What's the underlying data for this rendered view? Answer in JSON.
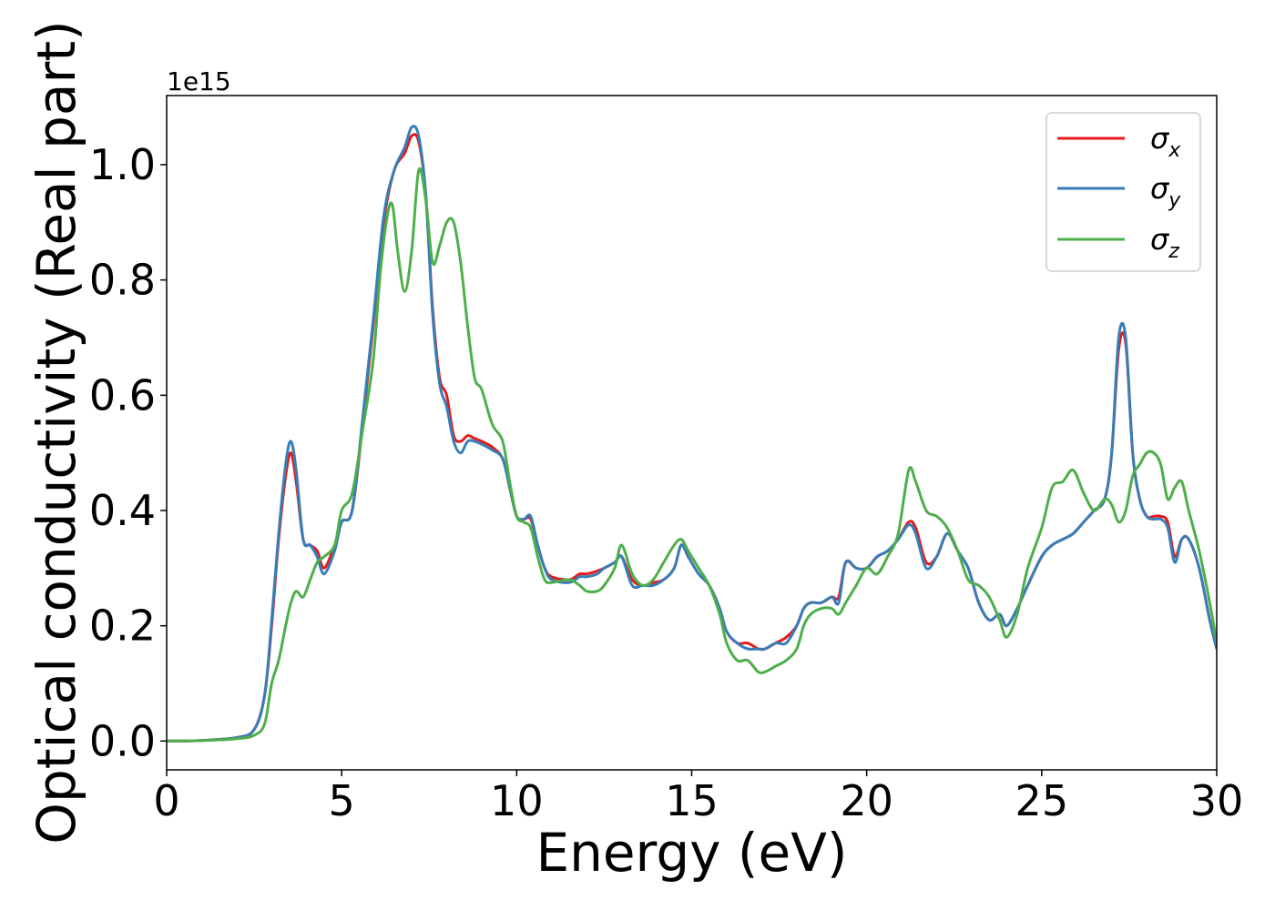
{
  "chart_data": {
    "type": "line",
    "title": "",
    "xlabel": "Energy (eV)",
    "ylabel": "Optical conductivity (Real part)",
    "y_offset_text": "1e15",
    "xlim": [
      0,
      30
    ],
    "ylim": [
      -0.05,
      1.12
    ],
    "xticks": [
      0,
      5,
      10,
      15,
      20,
      25,
      30
    ],
    "xtick_labels": [
      "0",
      "5",
      "10",
      "15",
      "20",
      "25",
      "30"
    ],
    "yticks": [
      0.0,
      0.2,
      0.4,
      0.6,
      0.8,
      1.0
    ],
    "ytick_labels": [
      "0.0",
      "0.2",
      "0.4",
      "0.6",
      "0.8",
      "1.0"
    ],
    "grid": false,
    "legend_position": "top-right",
    "series": [
      {
        "name": "σx",
        "legend_base": "σ",
        "legend_sub": "x",
        "color": "#e41a1c",
        "x": [
          0,
          1,
          2,
          2.5,
          2.8,
          3.0,
          3.2,
          3.4,
          3.55,
          3.7,
          3.9,
          4.1,
          4.3,
          4.5,
          4.8,
          5.0,
          5.3,
          5.6,
          5.9,
          6.2,
          6.5,
          6.8,
          7.0,
          7.2,
          7.4,
          7.6,
          7.8,
          8.0,
          8.2,
          8.4,
          8.6,
          8.8,
          9.0,
          9.3,
          9.6,
          9.8,
          10.0,
          10.2,
          10.4,
          10.6,
          10.8,
          11.0,
          11.5,
          11.8,
          12.0,
          12.3,
          12.5,
          12.8,
          13.0,
          13.3,
          13.6,
          13.9,
          14.2,
          14.5,
          14.7,
          14.9,
          15.2,
          15.5,
          15.8,
          16.0,
          16.3,
          16.6,
          16.9,
          17.1,
          17.4,
          17.7,
          18.0,
          18.2,
          18.4,
          18.7,
          19.0,
          19.2,
          19.4,
          19.7,
          20.0,
          20.3,
          20.6,
          20.9,
          21.2,
          21.4,
          21.7,
          22.0,
          22.3,
          22.6,
          22.9,
          23.2,
          23.5,
          23.8,
          24.0,
          24.3,
          24.6,
          25.0,
          25.3,
          25.6,
          25.9,
          26.2,
          26.5,
          26.8,
          27.0,
          27.2,
          27.4,
          27.6,
          27.8,
          28.0,
          28.2,
          28.4,
          28.6,
          28.8,
          29.0,
          29.2,
          29.5,
          29.8,
          30.0
        ],
        "y": [
          0.0,
          0.001,
          0.006,
          0.02,
          0.08,
          0.2,
          0.35,
          0.46,
          0.5,
          0.45,
          0.35,
          0.34,
          0.33,
          0.3,
          0.34,
          0.38,
          0.4,
          0.55,
          0.72,
          0.9,
          0.99,
          1.02,
          1.05,
          1.04,
          0.95,
          0.75,
          0.63,
          0.6,
          0.53,
          0.52,
          0.53,
          0.525,
          0.52,
          0.51,
          0.49,
          0.44,
          0.39,
          0.385,
          0.385,
          0.34,
          0.3,
          0.285,
          0.28,
          0.29,
          0.29,
          0.295,
          0.3,
          0.31,
          0.32,
          0.28,
          0.27,
          0.275,
          0.28,
          0.3,
          0.34,
          0.32,
          0.29,
          0.27,
          0.23,
          0.19,
          0.17,
          0.17,
          0.16,
          0.16,
          0.17,
          0.18,
          0.2,
          0.23,
          0.24,
          0.24,
          0.25,
          0.25,
          0.31,
          0.3,
          0.3,
          0.32,
          0.33,
          0.35,
          0.38,
          0.37,
          0.31,
          0.32,
          0.36,
          0.33,
          0.3,
          0.24,
          0.21,
          0.22,
          0.2,
          0.23,
          0.27,
          0.32,
          0.34,
          0.35,
          0.36,
          0.38,
          0.4,
          0.42,
          0.5,
          0.68,
          0.69,
          0.5,
          0.42,
          0.39,
          0.39,
          0.39,
          0.38,
          0.32,
          0.35,
          0.35,
          0.3,
          0.21,
          0.16
        ]
      },
      {
        "name": "σy",
        "legend_base": "σ",
        "legend_sub": "y",
        "color": "#377eb8",
        "x": [
          0,
          1,
          2,
          2.5,
          2.8,
          3.0,
          3.2,
          3.4,
          3.55,
          3.7,
          3.9,
          4.1,
          4.3,
          4.5,
          4.8,
          5.0,
          5.3,
          5.6,
          5.9,
          6.2,
          6.5,
          6.8,
          7.0,
          7.2,
          7.4,
          7.6,
          7.8,
          8.0,
          8.2,
          8.4,
          8.6,
          8.8,
          9.0,
          9.3,
          9.6,
          9.8,
          10.0,
          10.2,
          10.4,
          10.6,
          10.8,
          11.0,
          11.5,
          11.8,
          12.0,
          12.3,
          12.5,
          12.8,
          13.0,
          13.3,
          13.6,
          13.9,
          14.2,
          14.5,
          14.7,
          14.9,
          15.2,
          15.5,
          15.8,
          16.0,
          16.3,
          16.6,
          16.9,
          17.1,
          17.4,
          17.7,
          18.0,
          18.2,
          18.4,
          18.7,
          19.0,
          19.2,
          19.4,
          19.7,
          20.0,
          20.3,
          20.6,
          20.9,
          21.2,
          21.4,
          21.7,
          22.0,
          22.3,
          22.6,
          22.9,
          23.2,
          23.5,
          23.8,
          24.0,
          24.3,
          24.6,
          25.0,
          25.3,
          25.6,
          25.9,
          26.2,
          26.5,
          26.8,
          27.0,
          27.2,
          27.4,
          27.6,
          27.8,
          28.0,
          28.2,
          28.4,
          28.6,
          28.8,
          29.0,
          29.2,
          29.5,
          29.8,
          30.0
        ],
        "y": [
          0.0,
          0.001,
          0.006,
          0.02,
          0.08,
          0.21,
          0.36,
          0.48,
          0.52,
          0.47,
          0.35,
          0.34,
          0.32,
          0.29,
          0.33,
          0.38,
          0.4,
          0.56,
          0.73,
          0.91,
          0.99,
          1.03,
          1.065,
          1.05,
          0.95,
          0.74,
          0.62,
          0.58,
          0.52,
          0.5,
          0.52,
          0.52,
          0.515,
          0.505,
          0.49,
          0.44,
          0.39,
          0.385,
          0.39,
          0.34,
          0.3,
          0.28,
          0.275,
          0.285,
          0.285,
          0.29,
          0.3,
          0.31,
          0.32,
          0.27,
          0.27,
          0.27,
          0.28,
          0.3,
          0.34,
          0.32,
          0.29,
          0.27,
          0.23,
          0.19,
          0.17,
          0.16,
          0.16,
          0.16,
          0.17,
          0.17,
          0.2,
          0.23,
          0.24,
          0.24,
          0.25,
          0.24,
          0.31,
          0.3,
          0.3,
          0.32,
          0.33,
          0.35,
          0.375,
          0.36,
          0.3,
          0.32,
          0.36,
          0.33,
          0.3,
          0.24,
          0.21,
          0.22,
          0.2,
          0.23,
          0.27,
          0.32,
          0.34,
          0.35,
          0.36,
          0.38,
          0.4,
          0.42,
          0.5,
          0.7,
          0.7,
          0.5,
          0.42,
          0.39,
          0.385,
          0.385,
          0.37,
          0.31,
          0.35,
          0.35,
          0.3,
          0.21,
          0.16
        ]
      },
      {
        "name": "σz",
        "legend_base": "σ",
        "legend_sub": "z",
        "color": "#4daf4a",
        "x": [
          0,
          1,
          2,
          2.5,
          2.8,
          3.0,
          3.2,
          3.4,
          3.55,
          3.7,
          3.9,
          4.1,
          4.3,
          4.5,
          4.8,
          5.0,
          5.3,
          5.6,
          5.9,
          6.1,
          6.3,
          6.45,
          6.6,
          6.8,
          7.0,
          7.2,
          7.4,
          7.6,
          7.8,
          8.0,
          8.2,
          8.4,
          8.6,
          8.8,
          9.0,
          9.3,
          9.6,
          9.8,
          10.0,
          10.2,
          10.4,
          10.6,
          10.8,
          11.0,
          11.5,
          11.8,
          12.0,
          12.3,
          12.5,
          12.8,
          13.0,
          13.3,
          13.6,
          13.9,
          14.2,
          14.5,
          14.7,
          14.9,
          15.2,
          15.5,
          15.8,
          16.0,
          16.3,
          16.6,
          16.9,
          17.1,
          17.4,
          17.7,
          18.0,
          18.2,
          18.4,
          18.7,
          19.0,
          19.2,
          19.4,
          19.7,
          20.0,
          20.3,
          20.6,
          20.9,
          21.2,
          21.4,
          21.7,
          22.0,
          22.3,
          22.6,
          22.9,
          23.2,
          23.5,
          23.8,
          24.0,
          24.3,
          24.6,
          25.0,
          25.3,
          25.6,
          25.9,
          26.2,
          26.5,
          26.8,
          27.0,
          27.2,
          27.4,
          27.6,
          27.8,
          28.0,
          28.2,
          28.4,
          28.6,
          28.8,
          29.0,
          29.2,
          29.5,
          29.8,
          30.0
        ],
        "y": [
          0.0,
          0.001,
          0.004,
          0.01,
          0.03,
          0.1,
          0.14,
          0.2,
          0.24,
          0.26,
          0.25,
          0.28,
          0.31,
          0.32,
          0.34,
          0.4,
          0.43,
          0.54,
          0.66,
          0.81,
          0.91,
          0.93,
          0.85,
          0.78,
          0.85,
          0.99,
          0.94,
          0.83,
          0.86,
          0.9,
          0.9,
          0.83,
          0.72,
          0.63,
          0.61,
          0.55,
          0.52,
          0.45,
          0.39,
          0.38,
          0.37,
          0.32,
          0.28,
          0.275,
          0.28,
          0.27,
          0.26,
          0.26,
          0.27,
          0.3,
          0.34,
          0.29,
          0.27,
          0.28,
          0.31,
          0.34,
          0.35,
          0.33,
          0.3,
          0.27,
          0.22,
          0.17,
          0.14,
          0.14,
          0.12,
          0.12,
          0.13,
          0.14,
          0.16,
          0.2,
          0.22,
          0.23,
          0.23,
          0.22,
          0.24,
          0.27,
          0.3,
          0.29,
          0.32,
          0.36,
          0.47,
          0.45,
          0.4,
          0.39,
          0.37,
          0.33,
          0.28,
          0.27,
          0.25,
          0.21,
          0.18,
          0.22,
          0.3,
          0.37,
          0.44,
          0.45,
          0.47,
          0.43,
          0.4,
          0.42,
          0.41,
          0.38,
          0.4,
          0.46,
          0.48,
          0.5,
          0.5,
          0.48,
          0.42,
          0.44,
          0.45,
          0.4,
          0.33,
          0.24,
          0.17
        ]
      }
    ]
  }
}
